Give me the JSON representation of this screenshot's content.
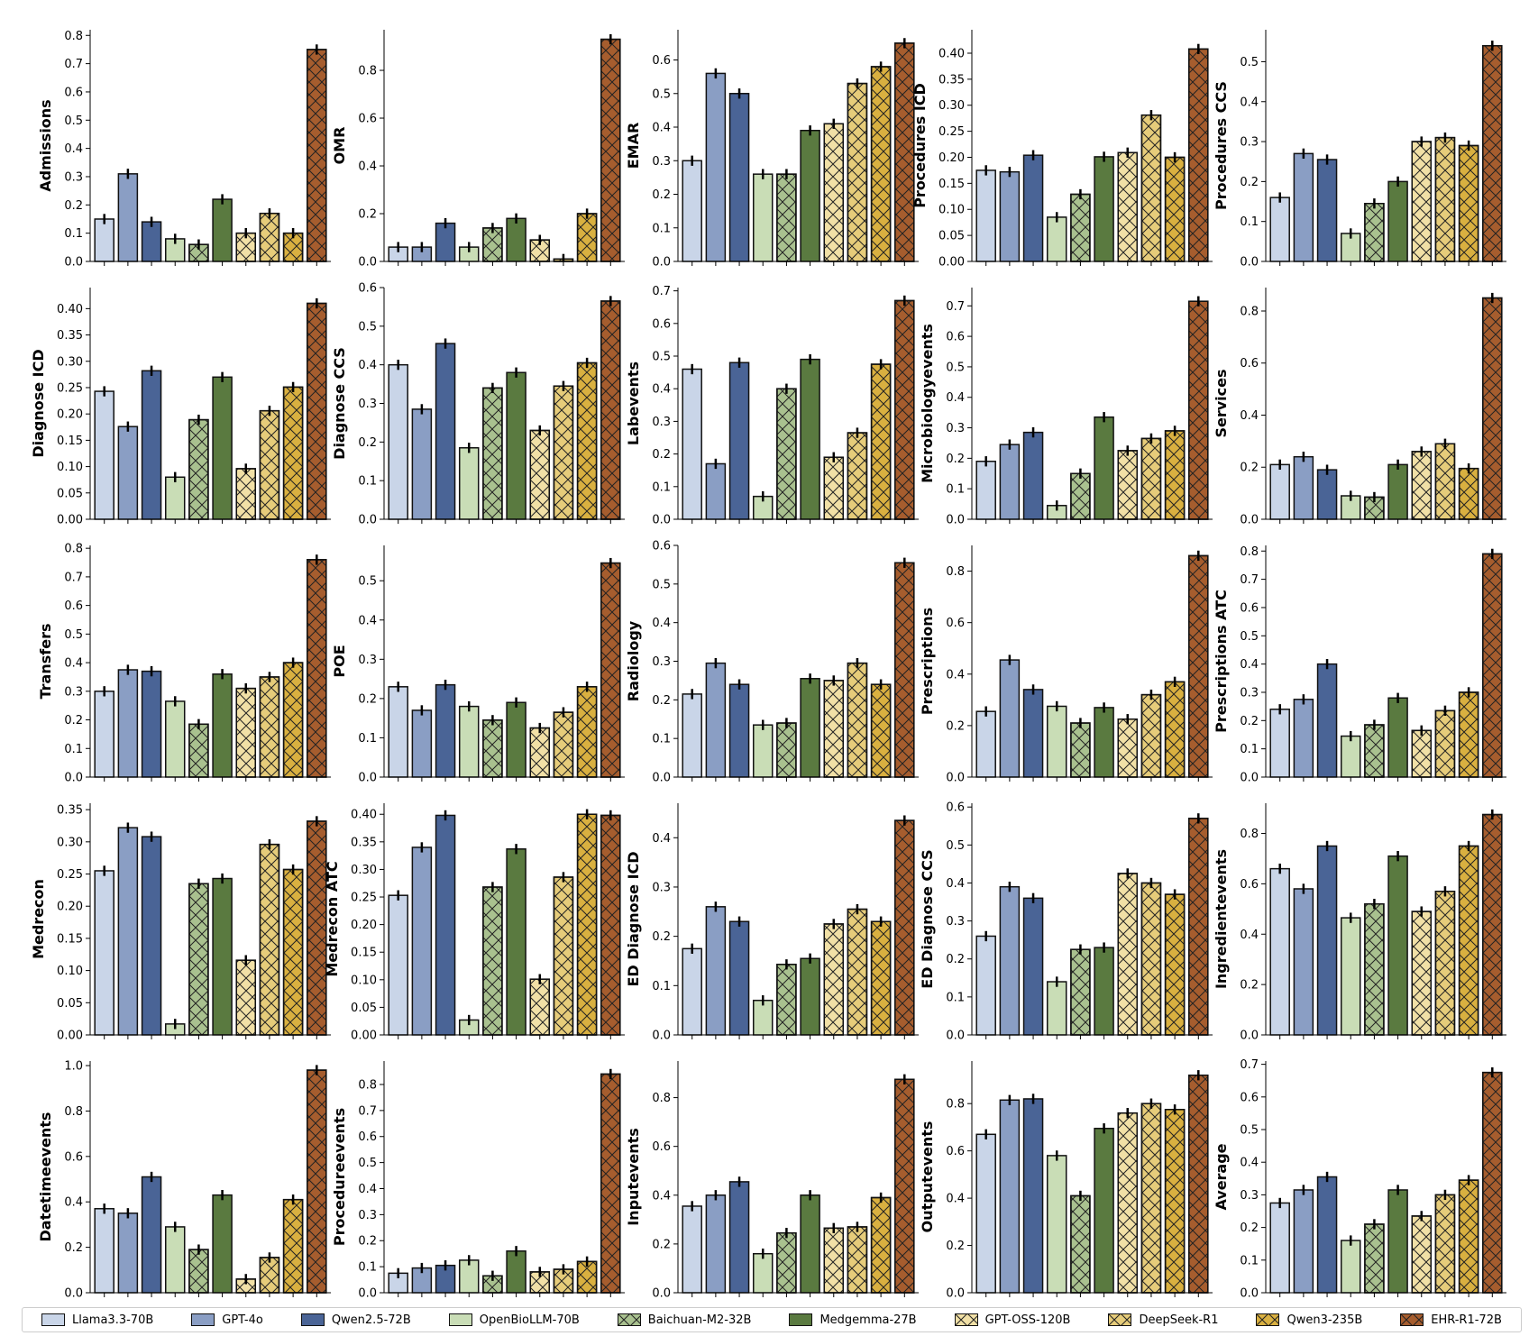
{
  "chart_data": {
    "type": "bar",
    "layout": "5x5 grid of subplots",
    "series": [
      {
        "name": "Llama3.3-70B",
        "color": "#c9d5e8",
        "hatch": false
      },
      {
        "name": "GPT-4o",
        "color": "#8a9ec4",
        "hatch": false
      },
      {
        "name": "Qwen2.5-72B",
        "color": "#4a6496",
        "hatch": false
      },
      {
        "name": "OpenBioLLM-70B",
        "color": "#c9ddb6",
        "hatch": false
      },
      {
        "name": "Baichuan-M2-32B",
        "color": "#a9c18f",
        "hatch": true
      },
      {
        "name": "Medgemma-27B",
        "color": "#5a7a40",
        "hatch": false
      },
      {
        "name": "GPT-OSS-120B",
        "color": "#f1e0a6",
        "hatch": true
      },
      {
        "name": "DeepSeek-R1",
        "color": "#e6cc7a",
        "hatch": true
      },
      {
        "name": "Qwen3-235B",
        "color": "#d9b040",
        "hatch": true
      },
      {
        "name": "EHR-R1-72B",
        "color": "#a65d2e",
        "hatch": true
      }
    ],
    "legend_position": "bottom",
    "panels": [
      {
        "ylabel": "Admissions",
        "ylim": [
          0,
          0.82
        ],
        "ticks": [
          "0.0",
          "0.1",
          "0.2",
          "0.3",
          "0.4",
          "0.5",
          "0.6",
          "0.7",
          "0.8"
        ],
        "values": [
          0.15,
          0.31,
          0.14,
          0.08,
          0.06,
          0.22,
          0.1,
          0.17,
          0.1,
          0.75
        ]
      },
      {
        "ylabel": "OMR",
        "ylim": [
          0,
          0.97
        ],
        "ticks": [
          "0.0",
          "0.2",
          "0.4",
          "0.6",
          "0.8"
        ],
        "values": [
          0.06,
          0.06,
          0.16,
          0.06,
          0.14,
          0.18,
          0.09,
          0.01,
          0.2,
          0.93
        ]
      },
      {
        "ylabel": "EMAR",
        "ylim": [
          0,
          0.69
        ],
        "ticks": [
          "0.0",
          "0.1",
          "0.2",
          "0.3",
          "0.4",
          "0.5",
          "0.6"
        ],
        "values": [
          0.3,
          0.56,
          0.5,
          0.26,
          0.26,
          0.39,
          0.41,
          0.53,
          0.58,
          0.65
        ]
      },
      {
        "ylabel": "Procedures ICD",
        "ylim": [
          0,
          0.445
        ],
        "ticks": [
          "0.00",
          "0.05",
          "0.10",
          "0.15",
          "0.20",
          "0.25",
          "0.30",
          "0.35",
          "0.40"
        ],
        "values": [
          0.175,
          0.172,
          0.204,
          0.085,
          0.129,
          0.201,
          0.209,
          0.281,
          0.2,
          0.408
        ]
      },
      {
        "ylabel": "Procedures CCS",
        "ylim": [
          0,
          0.58
        ],
        "ticks": [
          "0.0",
          "0.1",
          "0.2",
          "0.3",
          "0.4",
          "0.5"
        ],
        "values": [
          0.16,
          0.27,
          0.255,
          0.07,
          0.145,
          0.2,
          0.3,
          0.31,
          0.29,
          0.54
        ]
      },
      {
        "ylabel": "Diagnose ICD",
        "ylim": [
          0,
          0.44
        ],
        "ticks": [
          "0.00",
          "0.05",
          "0.10",
          "0.15",
          "0.20",
          "0.25",
          "0.30",
          "0.35",
          "0.40"
        ],
        "values": [
          0.243,
          0.176,
          0.282,
          0.08,
          0.189,
          0.27,
          0.096,
          0.206,
          0.251,
          0.41
        ]
      },
      {
        "ylabel": "Diagnose CCS",
        "ylim": [
          0,
          0.6
        ],
        "ticks": [
          "0.0",
          "0.1",
          "0.2",
          "0.3",
          "0.4",
          "0.5",
          "0.6"
        ],
        "values": [
          0.4,
          0.285,
          0.455,
          0.185,
          0.34,
          0.38,
          0.23,
          0.345,
          0.405,
          0.565
        ]
      },
      {
        "ylabel": "Labevents",
        "ylim": [
          0,
          0.71
        ],
        "ticks": [
          "0.0",
          "0.1",
          "0.2",
          "0.3",
          "0.4",
          "0.5",
          "0.6",
          "0.7"
        ],
        "values": [
          0.46,
          0.17,
          0.48,
          0.07,
          0.4,
          0.49,
          0.19,
          0.265,
          0.475,
          0.67
        ]
      },
      {
        "ylabel": "Microbiologyevents",
        "ylim": [
          0,
          0.76
        ],
        "ticks": [
          "0.0",
          "0.1",
          "0.2",
          "0.3",
          "0.4",
          "0.5",
          "0.6",
          "0.7"
        ],
        "values": [
          0.19,
          0.245,
          0.285,
          0.045,
          0.15,
          0.335,
          0.225,
          0.265,
          0.29,
          0.715
        ]
      },
      {
        "ylabel": "Services",
        "ylim": [
          0,
          0.89
        ],
        "ticks": [
          "0.0",
          "0.2",
          "0.4",
          "0.6",
          "0.8"
        ],
        "values": [
          0.21,
          0.24,
          0.19,
          0.09,
          0.085,
          0.21,
          0.26,
          0.29,
          0.195,
          0.85
        ]
      },
      {
        "ylabel": "Transfers",
        "ylim": [
          0,
          0.81
        ],
        "ticks": [
          "0.0",
          "0.1",
          "0.2",
          "0.3",
          "0.4",
          "0.5",
          "0.6",
          "0.7",
          "0.8"
        ],
        "values": [
          0.3,
          0.375,
          0.37,
          0.265,
          0.185,
          0.36,
          0.31,
          0.35,
          0.4,
          0.76
        ]
      },
      {
        "ylabel": "POE",
        "ylim": [
          0,
          0.59
        ],
        "ticks": [
          "0.0",
          "0.1",
          "0.2",
          "0.3",
          "0.4",
          "0.5"
        ],
        "values": [
          0.23,
          0.17,
          0.235,
          0.18,
          0.145,
          0.19,
          0.125,
          0.165,
          0.23,
          0.545
        ]
      },
      {
        "ylabel": "Radiology",
        "ylim": [
          0,
          0.6
        ],
        "ticks": [
          "0.0",
          "0.1",
          "0.2",
          "0.3",
          "0.4",
          "0.5",
          "0.6"
        ],
        "values": [
          0.215,
          0.295,
          0.24,
          0.135,
          0.14,
          0.255,
          0.25,
          0.295,
          0.24,
          0.555
        ]
      },
      {
        "ylabel": "Prescriptions",
        "ylim": [
          0,
          0.9
        ],
        "ticks": [
          "0.0",
          "0.2",
          "0.4",
          "0.6",
          "0.8"
        ],
        "values": [
          0.255,
          0.455,
          0.34,
          0.275,
          0.21,
          0.27,
          0.225,
          0.32,
          0.37,
          0.86
        ]
      },
      {
        "ylabel": "Prescriptions ATC",
        "ylim": [
          0,
          0.82
        ],
        "ticks": [
          "0.0",
          "0.1",
          "0.2",
          "0.3",
          "0.4",
          "0.5",
          "0.6",
          "0.7",
          "0.8"
        ],
        "values": [
          0.24,
          0.275,
          0.4,
          0.145,
          0.185,
          0.28,
          0.165,
          0.235,
          0.3,
          0.79
        ]
      },
      {
        "ylabel": "Medrecon",
        "ylim": [
          0,
          0.36
        ],
        "ticks": [
          "0.00",
          "0.05",
          "0.10",
          "0.15",
          "0.20",
          "0.25",
          "0.30",
          "0.35"
        ],
        "values": [
          0.255,
          0.322,
          0.308,
          0.017,
          0.235,
          0.243,
          0.116,
          0.296,
          0.257,
          0.332
        ]
      },
      {
        "ylabel": "Medrecon ATC",
        "ylim": [
          0,
          0.42
        ],
        "ticks": [
          "0.00",
          "0.05",
          "0.10",
          "0.15",
          "0.20",
          "0.25",
          "0.30",
          "0.35",
          "0.40"
        ],
        "values": [
          0.253,
          0.34,
          0.398,
          0.027,
          0.268,
          0.337,
          0.101,
          0.286,
          0.4,
          0.398
        ]
      },
      {
        "ylabel": "ED Diagnose ICD",
        "ylim": [
          0,
          0.47
        ],
        "ticks": [
          "0.0",
          "0.1",
          "0.2",
          "0.3",
          "0.4"
        ],
        "values": [
          0.175,
          0.26,
          0.23,
          0.07,
          0.143,
          0.155,
          0.225,
          0.255,
          0.23,
          0.435
        ]
      },
      {
        "ylabel": "ED Diagnose CCS",
        "ylim": [
          0,
          0.61
        ],
        "ticks": [
          "0.0",
          "0.1",
          "0.2",
          "0.3",
          "0.4",
          "0.5",
          "0.6"
        ],
        "values": [
          0.26,
          0.39,
          0.36,
          0.14,
          0.225,
          0.23,
          0.425,
          0.4,
          0.37,
          0.57
        ]
      },
      {
        "ylabel": "Ingredientevents",
        "ylim": [
          0,
          0.92
        ],
        "ticks": [
          "0.0",
          "0.2",
          "0.4",
          "0.6",
          "0.8"
        ],
        "values": [
          0.66,
          0.58,
          0.75,
          0.465,
          0.52,
          0.71,
          0.49,
          0.57,
          0.75,
          0.875
        ]
      },
      {
        "ylabel": "Datetimeevents",
        "ylim": [
          0,
          1.02
        ],
        "ticks": [
          "0.0",
          "0.2",
          "0.4",
          "0.6",
          "0.8",
          "1.0"
        ],
        "values": [
          0.37,
          0.35,
          0.51,
          0.29,
          0.19,
          0.43,
          0.06,
          0.155,
          0.41,
          0.98
        ]
      },
      {
        "ylabel": "Procedureevents",
        "ylim": [
          0,
          0.89
        ],
        "ticks": [
          "0.0",
          "0.1",
          "0.2",
          "0.3",
          "0.4",
          "0.5",
          "0.6",
          "0.7",
          "0.8"
        ],
        "values": [
          0.075,
          0.095,
          0.105,
          0.125,
          0.065,
          0.16,
          0.08,
          0.09,
          0.12,
          0.84
        ]
      },
      {
        "ylabel": "Inputevents",
        "ylim": [
          0,
          0.95
        ],
        "ticks": [
          "0.0",
          "0.2",
          "0.4",
          "0.6",
          "0.8"
        ],
        "values": [
          0.355,
          0.4,
          0.455,
          0.16,
          0.245,
          0.4,
          0.265,
          0.27,
          0.39,
          0.875
        ]
      },
      {
        "ylabel": "Outputevents",
        "ylim": [
          0,
          0.98
        ],
        "ticks": [
          "0.0",
          "0.2",
          "0.4",
          "0.6",
          "0.8"
        ],
        "values": [
          0.67,
          0.815,
          0.82,
          0.58,
          0.41,
          0.695,
          0.76,
          0.8,
          0.775,
          0.92
        ]
      },
      {
        "ylabel": "Average",
        "ylim": [
          0,
          0.71
        ],
        "ticks": [
          "0.0",
          "0.1",
          "0.2",
          "0.3",
          "0.4",
          "0.5",
          "0.6",
          "0.7"
        ],
        "values": [
          0.275,
          0.315,
          0.355,
          0.16,
          0.21,
          0.315,
          0.235,
          0.3,
          0.345,
          0.675
        ]
      }
    ]
  }
}
